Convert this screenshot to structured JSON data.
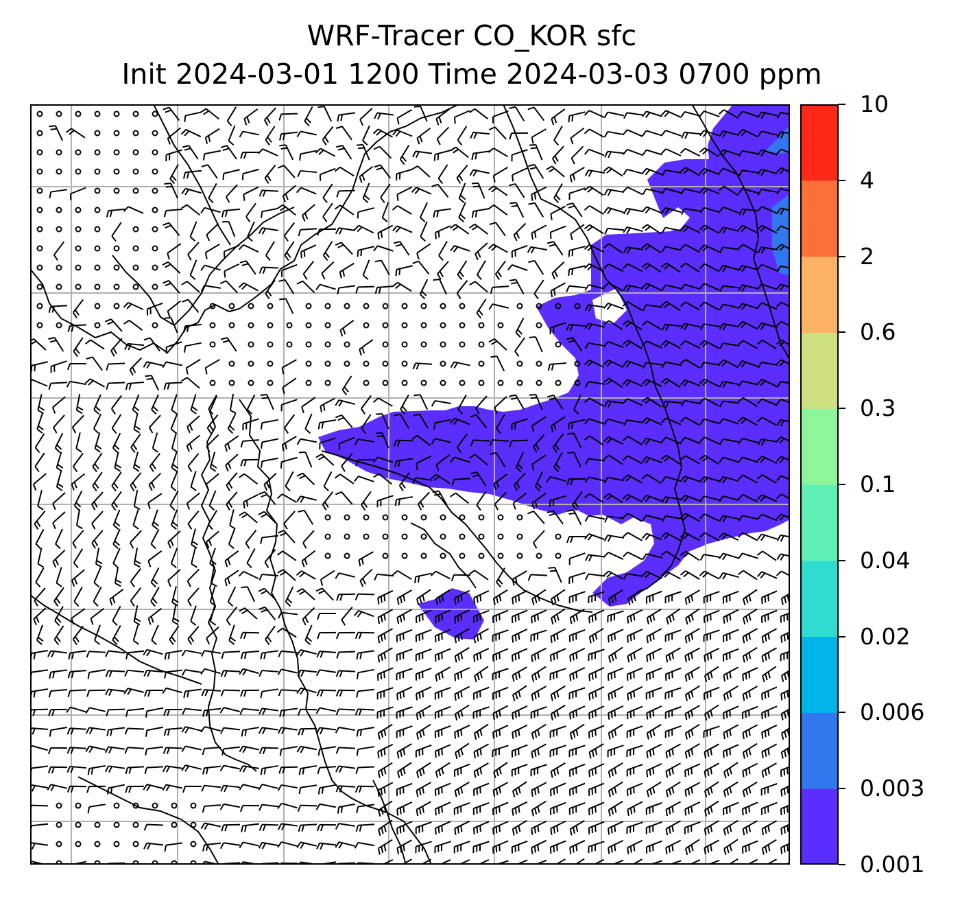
{
  "title": {
    "line1": "WRF-Tracer CO_KOR sfc",
    "line2": "Init 2024-03-01 1200 Time 2024-03-03 0700 ppm"
  },
  "colorbar": {
    "levels": [
      "0.001",
      "0.003",
      "0.006",
      "0.02",
      "0.04",
      "0.1",
      "0.3",
      "0.6",
      "2",
      "4",
      "10"
    ],
    "colors": [
      "#5b2eff",
      "#3377ee",
      "#00b3e8",
      "#30dcd0",
      "#5ff0b6",
      "#8ef59a",
      "#cfe083",
      "#fdb366",
      "#fd7038",
      "#fe2a17"
    ]
  },
  "map": {
    "tracer": "CO_KOR",
    "level": "sfc",
    "units": "ppm",
    "wind_symbol": "wind-barbs",
    "calm_symbol": "circle",
    "gridlines": true,
    "plume_color": "#5b2eff",
    "plume_core_color": "#3377ee",
    "coastline_color": "#000000",
    "grid_color": "#b0b0b0"
  }
}
